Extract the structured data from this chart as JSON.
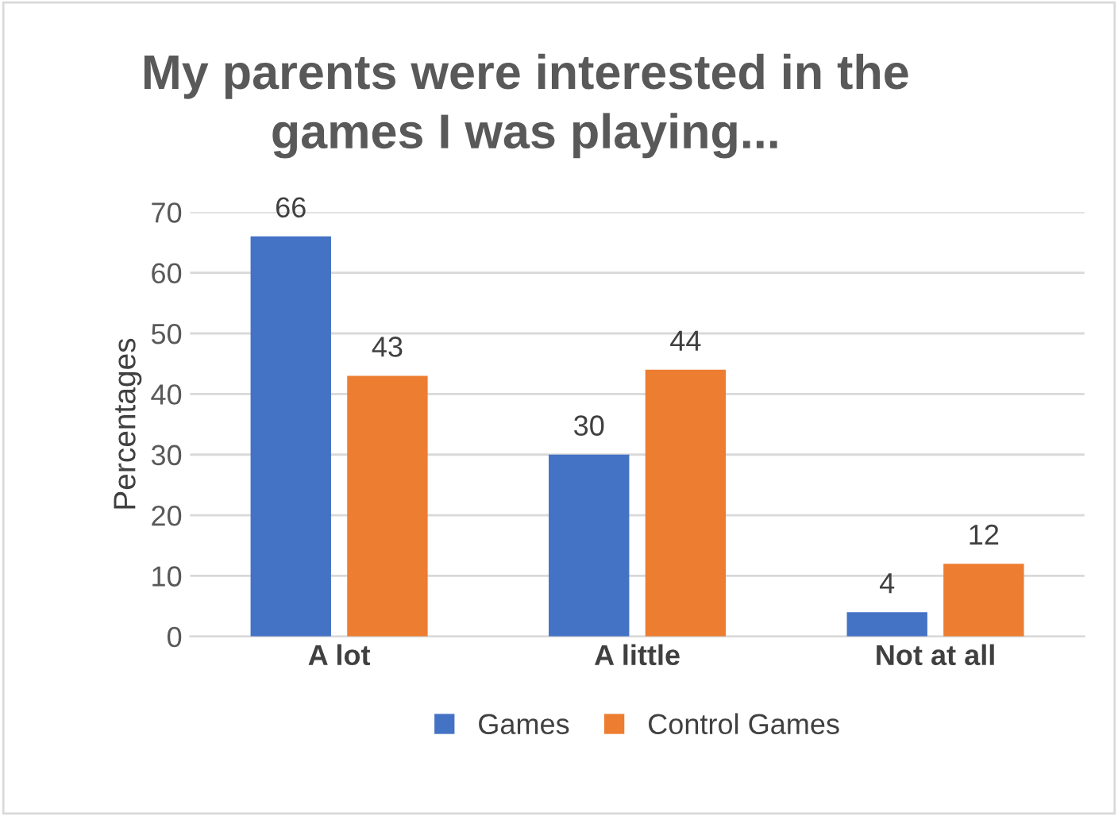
{
  "chart_data": {
    "type": "bar",
    "title": "My parents were interested in the\ngames I was playing...",
    "ylabel": "Percentages",
    "categories": [
      "A lot",
      "A little",
      "Not at all"
    ],
    "series": [
      {
        "name": "Games",
        "color": "#4472c4",
        "values": [
          66,
          30,
          4
        ]
      },
      {
        "name": "Control Games",
        "color": "#ed7d31",
        "values": [
          43,
          44,
          12
        ]
      }
    ],
    "ylim": [
      0,
      70
    ],
    "yticks": [
      0,
      10,
      20,
      30,
      40,
      50,
      60,
      70
    ],
    "grid": "y",
    "legend": "bottom",
    "data_labels": true
  }
}
